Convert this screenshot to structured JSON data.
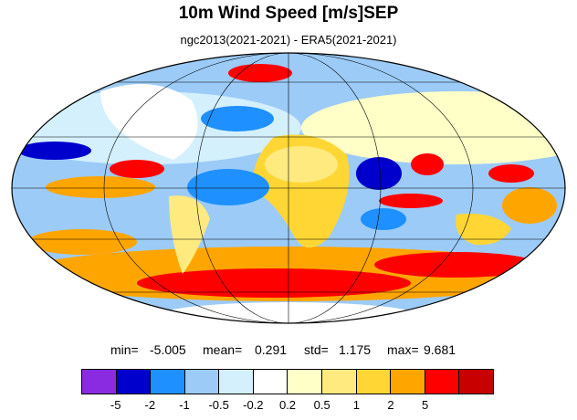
{
  "title": "10m Wind Speed [m/s]SEP",
  "subtitle": "ngc2013(2021-2021) - ERA5(2021-2021)",
  "stats": {
    "min_label": "min=",
    "min_value": "-5.005",
    "mean_label": "mean=",
    "mean_value": "0.291",
    "std_label": "std=",
    "std_value": "1.175",
    "max_label": "max=",
    "max_value": "9.681"
  },
  "colorbar": {
    "colors": [
      "#8a2be2",
      "#0000cd",
      "#1e90ff",
      "#9ccbf7",
      "#d4f0fd",
      "#ffffff",
      "#ffffc8",
      "#ffea80",
      "#ffd633",
      "#ffa500",
      "#ff0000",
      "#c80000"
    ],
    "tick_labels": [
      "-5",
      "-2",
      "-1",
      "-0.5",
      "-0.2",
      "0.2",
      "0.5",
      "1",
      "2",
      "5"
    ]
  },
  "map": {
    "projection": "mollweide",
    "field": "wind speed difference",
    "regions": [
      {
        "name": "southern-ocean-band",
        "category": "positive",
        "color": "#ff0000"
      },
      {
        "name": "arabian-sea",
        "category": "negative",
        "color": "#0000cd"
      },
      {
        "name": "bay-of-bengal",
        "category": "positive",
        "color": "#ff0000"
      },
      {
        "name": "sahara",
        "category": "positive",
        "color": "#ffd633"
      },
      {
        "name": "tropical-atlantic",
        "category": "negative",
        "color": "#1e90ff"
      },
      {
        "name": "north-atlantic",
        "category": "negative",
        "color": "#1e90ff"
      },
      {
        "name": "indian-ocean-south",
        "category": "positive",
        "color": "#ffa500"
      },
      {
        "name": "east-pacific",
        "category": "positive",
        "color": "#ffa500"
      }
    ]
  }
}
